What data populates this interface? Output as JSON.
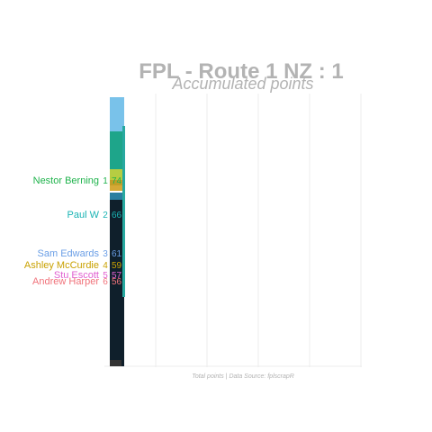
{
  "chart_data": {
    "type": "bar",
    "orientation": "horizontal",
    "title": "FPL - Route 1 NZ : 1",
    "subtitle": "Accumulated points",
    "caption": "Total points | Data Source: fplscrapR",
    "grid": true,
    "categories": [
      "Nestor Berning",
      "Paul W",
      "Sam Edwards",
      "Ashley McCurdie",
      "Stu Escott",
      "Andrew Harper"
    ],
    "ranks": [
      1,
      2,
      3,
      4,
      5,
      6
    ],
    "values": [
      74,
      66,
      61,
      59,
      57,
      56
    ],
    "colors": [
      "#1fb34c",
      "#19b3b3",
      "#6a9ee6",
      "#c9a100",
      "#e05fd0",
      "#f0727a"
    ]
  }
}
